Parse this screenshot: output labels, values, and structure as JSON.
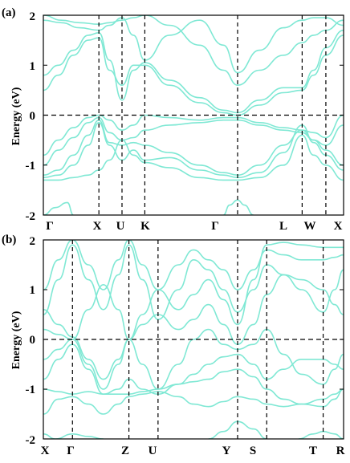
{
  "figure": {
    "band_color": "#7fe8d4",
    "axis_color": "#000000",
    "dash_color": "#000000"
  },
  "chart_data": [
    {
      "type": "line",
      "panel_label": "(a)",
      "ylabel": "Energy (eV)",
      "ylim": [
        -2,
        2
      ],
      "yticks": [
        "-2",
        "-1",
        "0",
        "1",
        "2"
      ],
      "fermi_level": 0,
      "kpoints": [
        {
          "label": "Γ",
          "pos": 0.0
        },
        {
          "label": "X",
          "pos": 0.185
        },
        {
          "label": "U",
          "pos": 0.262
        },
        {
          "label": "K",
          "pos": 0.338
        },
        {
          "label": "Γ",
          "pos": 0.647
        },
        {
          "label": "L",
          "pos": 0.862
        },
        {
          "label": "W",
          "pos": 0.941
        },
        {
          "label": "X",
          "pos": 1.0
        }
      ],
      "series": [
        {
          "x": [
            0,
            0.06,
            0.12,
            0.185,
            0.22,
            0.262,
            0.3,
            0.338,
            0.42,
            0.52,
            0.6,
            0.647,
            0.72,
            0.8,
            0.862,
            0.9,
            0.941,
            1.0
          ],
          "y": [
            2.0,
            1.9,
            1.85,
            1.82,
            1.85,
            1.9,
            1.95,
            2.0,
            1.8,
            1.4,
            0.9,
            0.6,
            0.9,
            1.2,
            1.45,
            1.6,
            1.7,
            1.9
          ]
        },
        {
          "x": [
            0,
            0.06,
            0.12,
            0.185,
            0.22,
            0.262,
            0.3,
            0.338,
            0.42,
            0.52,
            0.6,
            0.647,
            0.72,
            0.8,
            0.862,
            0.9,
            0.941,
            1.0
          ],
          "y": [
            1.9,
            1.85,
            1.75,
            1.7,
            1.8,
            1.95,
            1.6,
            1.1,
            1.6,
            1.9,
            1.4,
            0.85,
            1.3,
            1.75,
            1.9,
            1.95,
            1.95,
            1.8
          ]
        },
        {
          "x": [
            0,
            0.05,
            0.1,
            0.15,
            0.185,
            0.22,
            0.262,
            0.3,
            0.338,
            0.42,
            0.52,
            0.6,
            0.647,
            0.72,
            0.8,
            0.862,
            0.9,
            0.941,
            1.0
          ],
          "y": [
            0.8,
            1.0,
            1.3,
            1.6,
            1.65,
            1.1,
            0.3,
            0.9,
            1.05,
            0.7,
            0.35,
            0.1,
            0.05,
            0.3,
            0.55,
            0.55,
            0.9,
            1.35,
            1.7
          ]
        },
        {
          "x": [
            0,
            0.05,
            0.1,
            0.15,
            0.185,
            0.22,
            0.262,
            0.3,
            0.338,
            0.42,
            0.52,
            0.6,
            0.647,
            0.72,
            0.8,
            0.862,
            0.9,
            0.941,
            1.0
          ],
          "y": [
            0.5,
            0.8,
            1.2,
            1.5,
            1.55,
            0.9,
            0.6,
            1.0,
            1.0,
            0.6,
            0.25,
            0.05,
            0.0,
            0.2,
            0.45,
            0.5,
            0.8,
            1.2,
            1.6
          ]
        },
        {
          "x": [
            0,
            0.05,
            0.1,
            0.15,
            0.185,
            0.22,
            0.262,
            0.3,
            0.338,
            0.42,
            0.52,
            0.6,
            0.647,
            0.72,
            0.8,
            0.862,
            0.9,
            0.941,
            1.0
          ],
          "y": [
            -0.8,
            -0.5,
            -0.25,
            -0.05,
            0.0,
            -0.1,
            -0.3,
            -0.2,
            0.0,
            -0.05,
            -0.1,
            -0.05,
            -0.05,
            -0.15,
            -0.25,
            -0.3,
            -0.35,
            -0.45,
            0.0
          ]
        },
        {
          "x": [
            0,
            0.05,
            0.1,
            0.15,
            0.185,
            0.22,
            0.262,
            0.3,
            0.338,
            0.42,
            0.52,
            0.6,
            0.647,
            0.72,
            0.8,
            0.862,
            0.9,
            0.941,
            1.0
          ],
          "y": [
            -1.0,
            -0.7,
            -0.45,
            -0.15,
            -0.05,
            -0.35,
            -0.5,
            -0.45,
            -0.3,
            -0.2,
            -0.15,
            -0.1,
            -0.1,
            -0.2,
            -0.3,
            -0.35,
            -0.5,
            -0.6,
            -0.2
          ]
        },
        {
          "x": [
            0,
            0.05,
            0.1,
            0.15,
            0.185,
            0.22,
            0.262,
            0.3,
            0.338,
            0.42,
            0.52,
            0.6,
            0.647,
            0.72,
            0.8,
            0.862,
            0.9,
            0.941,
            1.0
          ],
          "y": [
            -1.2,
            -1.1,
            -0.8,
            -0.4,
            -0.1,
            -0.55,
            -0.6,
            -0.55,
            -0.6,
            -0.75,
            -1.0,
            -1.15,
            -1.2,
            -1.0,
            -0.6,
            -0.3,
            -0.5,
            -0.7,
            -1.0
          ]
        },
        {
          "x": [
            0,
            0.05,
            0.1,
            0.15,
            0.185,
            0.22,
            0.262,
            0.3,
            0.338,
            0.42,
            0.52,
            0.6,
            0.647,
            0.72,
            0.8,
            0.862,
            0.9,
            0.941,
            1.0
          ],
          "y": [
            -1.25,
            -1.2,
            -1.0,
            -0.6,
            -0.15,
            -0.6,
            -0.9,
            -0.7,
            -0.9,
            -0.85,
            -1.1,
            -1.2,
            -1.25,
            -1.15,
            -0.75,
            -0.2,
            -0.55,
            -0.8,
            -1.1
          ]
        },
        {
          "x": [
            0,
            0.05,
            0.1,
            0.15,
            0.185,
            0.22,
            0.262,
            0.3,
            0.338,
            0.42,
            0.52,
            0.6,
            0.647,
            0.72,
            0.8,
            0.862,
            0.9,
            0.941,
            1.0
          ],
          "y": [
            -1.3,
            -1.3,
            -1.25,
            -1.2,
            -1.1,
            -0.9,
            -0.5,
            -0.8,
            -0.95,
            -1.05,
            -1.25,
            -1.3,
            -1.3,
            -1.25,
            -1.0,
            -0.4,
            -0.8,
            -1.0,
            -1.3
          ]
        },
        {
          "x": [
            0,
            0.04,
            0.08,
            0.1
          ],
          "y": [
            -2.0,
            -1.85,
            -1.75,
            -2.0
          ]
        },
        {
          "x": [
            0.6,
            0.62,
            0.647,
            0.67,
            0.7
          ],
          "y": [
            -2.0,
            -1.8,
            -1.7,
            -1.8,
            -2.0
          ]
        }
      ]
    },
    {
      "type": "line",
      "panel_label": "(b)",
      "ylabel": "Energy (eV)",
      "ylim": [
        -2,
        2
      ],
      "yticks": [
        "-2",
        "-1",
        "0",
        "1",
        "2"
      ],
      "fermi_level": 0,
      "kpoints": [
        {
          "label": "X",
          "pos": 0.0
        },
        {
          "label": "Γ",
          "pos": 0.097
        },
        {
          "label": "Z",
          "pos": 0.285
        },
        {
          "label": "U",
          "pos": 0.382
        },
        {
          "label": "Y",
          "pos": 0.647
        },
        {
          "label": "S",
          "pos": 0.744
        },
        {
          "label": "T",
          "pos": 0.932
        },
        {
          "label": "R",
          "pos": 1.0
        }
      ],
      "series": [
        {
          "x": [
            0,
            0.05,
            0.097,
            0.15,
            0.2,
            0.25,
            0.285,
            0.33,
            0.382,
            0.45,
            0.5,
            0.55,
            0.6,
            0.647,
            0.7,
            0.744,
            0.8,
            0.86,
            0.932,
            0.97,
            1.0
          ],
          "y": [
            0.5,
            1.2,
            1.9,
            1.2,
            0.6,
            1.3,
            1.9,
            1.2,
            0.4,
            1.0,
            1.6,
            1.4,
            1.0,
            0.55,
            1.0,
            1.5,
            1.3,
            1.0,
            0.55,
            1.0,
            1.4
          ]
        },
        {
          "x": [
            0,
            0.05,
            0.097,
            0.15,
            0.2,
            0.25,
            0.285,
            0.33,
            0.382,
            0.45,
            0.5,
            0.55,
            0.6,
            0.647,
            0.7,
            0.744,
            0.8,
            0.86,
            0.932,
            0.97,
            1.0
          ],
          "y": [
            1.0,
            1.6,
            2.0,
            1.5,
            1.0,
            1.6,
            2.0,
            1.5,
            1.0,
            1.5,
            1.8,
            1.6,
            1.4,
            1.0,
            1.4,
            1.8,
            1.7,
            1.6,
            1.6,
            1.65,
            1.7
          ]
        },
        {
          "x": [
            0,
            0.05,
            0.097,
            0.15,
            0.2,
            0.25,
            0.285,
            0.33,
            0.382,
            0.45,
            0.5,
            0.55,
            0.6,
            0.647,
            0.7,
            0.744,
            0.8,
            0.86,
            0.932,
            0.97,
            1.0
          ],
          "y": [
            0.2,
            0.1,
            0.0,
            0.6,
            1.1,
            0.6,
            0.0,
            0.5,
            1.0,
            0.6,
            0.9,
            1.2,
            0.8,
            0.3,
            1.2,
            1.9,
            1.95,
            1.9,
            1.85,
            1.85,
            1.85
          ]
        },
        {
          "x": [
            0,
            0.05,
            0.097,
            0.15,
            0.2,
            0.25,
            0.285,
            0.33,
            0.382,
            0.45,
            0.5,
            0.55,
            0.6,
            0.647,
            0.7,
            0.744,
            0.8,
            0.86,
            0.932,
            0.97,
            1.0
          ],
          "y": [
            0.6,
            0.3,
            0.05,
            -0.4,
            -0.8,
            -0.4,
            0.0,
            0.3,
            0.5,
            0.2,
            0.4,
            0.7,
            0.3,
            -0.1,
            0.3,
            0.9,
            1.3,
            1.2,
            1.0,
            0.7,
            0.5
          ]
        },
        {
          "x": [
            0,
            0.05,
            0.097,
            0.15,
            0.2,
            0.25,
            0.285,
            0.33,
            0.382,
            0.45,
            0.5,
            0.55,
            0.6,
            0.647,
            0.7,
            0.744,
            0.8,
            0.86,
            0.932,
            0.97,
            1.0
          ],
          "y": [
            -0.4,
            -0.2,
            0.0,
            -0.5,
            -1.0,
            -0.5,
            0.0,
            -0.5,
            -1.0,
            -0.5,
            0.0,
            0.2,
            -0.1,
            -0.2,
            -0.1,
            0.2,
            -0.3,
            -0.7,
            -0.9,
            -0.6,
            -0.3
          ]
        },
        {
          "x": [
            0,
            0.05,
            0.097,
            0.15,
            0.2,
            0.25,
            0.285,
            0.33,
            0.382,
            0.45,
            0.5,
            0.55,
            0.6,
            0.647,
            0.7,
            0.744,
            0.8,
            0.86,
            0.932,
            0.97,
            1.0
          ],
          "y": [
            -0.8,
            -0.4,
            -0.1,
            -0.6,
            -1.1,
            -1.0,
            -0.8,
            -1.0,
            -1.1,
            -0.9,
            -0.7,
            -0.5,
            -0.35,
            -0.3,
            -0.5,
            -0.8,
            -0.6,
            -0.4,
            -0.4,
            -0.5,
            -0.6
          ]
        },
        {
          "x": [
            0,
            0.05,
            0.097,
            0.15,
            0.2,
            0.25,
            0.285,
            0.33,
            0.382,
            0.45,
            0.5,
            0.55,
            0.6,
            0.647,
            0.7,
            0.744,
            0.8,
            0.86,
            0.932,
            0.97,
            1.0
          ],
          "y": [
            -1.0,
            -1.05,
            -1.1,
            -1.05,
            -1.1,
            -1.1,
            -1.1,
            -1.05,
            -1.0,
            -0.9,
            -0.85,
            -0.8,
            -0.65,
            -0.6,
            -0.75,
            -1.0,
            -1.2,
            -1.3,
            -1.35,
            -1.2,
            -1.0
          ]
        },
        {
          "x": [
            0,
            0.05,
            0.097,
            0.15,
            0.2,
            0.25,
            0.285,
            0.33,
            0.382,
            0.45,
            0.5,
            0.55,
            0.6,
            0.647,
            0.7,
            0.744,
            0.8,
            0.86,
            0.932,
            0.97,
            1.0
          ],
          "y": [
            -1.5,
            -1.2,
            -1.15,
            -1.3,
            -1.5,
            -1.3,
            -1.15,
            -1.1,
            -1.05,
            -1.15,
            -1.3,
            -1.35,
            -1.25,
            -1.15,
            -1.2,
            -1.3,
            -1.35,
            -1.3,
            -1.2,
            -1.1,
            -1.0
          ]
        },
        {
          "x": [
            0,
            0.04,
            0.097,
            0.15,
            0.2
          ],
          "y": [
            -1.9,
            -2.0,
            -1.9,
            -1.95,
            -2.0
          ]
        },
        {
          "x": [
            0.55,
            0.6,
            0.647,
            0.7,
            0.744
          ],
          "y": [
            -2.0,
            -1.85,
            -1.65,
            -1.8,
            -2.0
          ]
        },
        {
          "x": [
            0.85,
            0.9,
            0.932,
            0.97,
            1.0
          ],
          "y": [
            -2.0,
            -1.9,
            -1.85,
            -1.9,
            -2.0
          ]
        }
      ]
    }
  ]
}
